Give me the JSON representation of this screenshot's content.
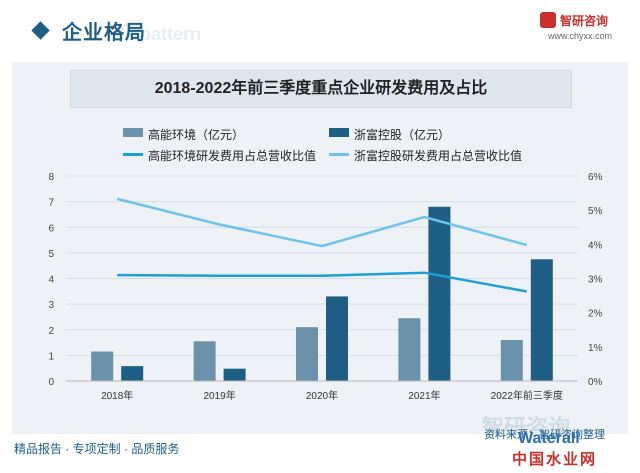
{
  "header": {
    "section_title": "企业格局",
    "ghost_text": "le pattern",
    "logo_name": "智研咨询",
    "logo_url": "www.chyxx.com"
  },
  "chart_title": "2018-2022年前三季度重点企业研发费用及占比",
  "footer": {
    "tagline": "精品报告 · 专项定制 · 品质服务",
    "watermark": "智研咨询",
    "source": "资料来源：智研咨询整理",
    "site_line1": "Waterall",
    "site_line2": "中国水业网"
  },
  "colors": {
    "bar_a": "#6a93ab",
    "bar_b": "#1f5f86",
    "line_a": "#1f9fd8",
    "line_b": "#6cc4ea",
    "brand": "#1f5f86"
  },
  "chart_data": {
    "type": "bar",
    "title": "2018-2022年前三季度重点企业研发费用及占比",
    "categories": [
      "2018年",
      "2019年",
      "2020年",
      "2021年",
      "2022年前三季度"
    ],
    "y_left": {
      "min": 0,
      "max": 8,
      "ticks": [
        "0",
        "1",
        "2",
        "3",
        "4",
        "5",
        "6",
        "7",
        "8"
      ]
    },
    "y_right": {
      "min": 0,
      "max": 6,
      "ticks": [
        "0%",
        "1%",
        "2%",
        "3%",
        "4%",
        "5%",
        "6%"
      ]
    },
    "bar_series": [
      {
        "name": "高能环境（亿元）",
        "values": [
          1.15,
          1.55,
          2.1,
          2.45,
          1.6
        ]
      },
      {
        "name": "浙富控股（亿元）",
        "values": [
          0.58,
          0.48,
          3.3,
          6.8,
          4.75
        ]
      }
    ],
    "line_series": [
      {
        "name": "高能环境研发费用占总营收比值",
        "values": [
          3.1,
          3.08,
          3.08,
          3.17,
          2.62
        ],
        "unit": "%"
      },
      {
        "name": "浙富控股研发费用占总营收比值",
        "values": [
          5.33,
          4.58,
          3.95,
          4.8,
          3.98
        ],
        "unit": "%"
      }
    ],
    "grid": true,
    "legend": "top"
  }
}
